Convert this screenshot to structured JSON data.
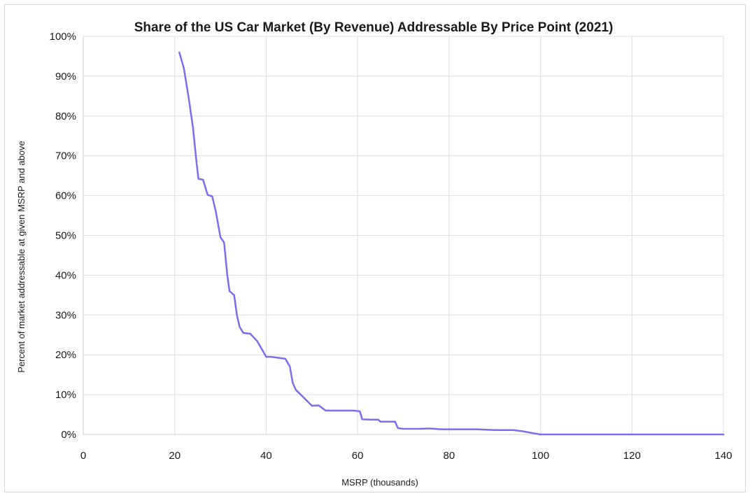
{
  "chart_data": {
    "type": "line",
    "title": "Share of the US Car Market (By Revenue) Addressable By Price Point (2021)",
    "xlabel": "MSRP (thousands)",
    "ylabel": "Percent of market addressable at given MSRP and above",
    "xlim": [
      0,
      140
    ],
    "ylim": [
      0,
      100
    ],
    "x_ticks": [
      0,
      20,
      40,
      60,
      80,
      100,
      120,
      140
    ],
    "y_ticks": [
      0,
      10,
      20,
      30,
      40,
      50,
      60,
      70,
      80,
      90,
      100
    ],
    "x_tick_labels": [
      "0",
      "20",
      "40",
      "60",
      "80",
      "100",
      "120",
      "140"
    ],
    "y_tick_labels": [
      "0%",
      "10%",
      "20%",
      "30%",
      "40%",
      "50%",
      "60%",
      "70%",
      "80%",
      "90%",
      "100%"
    ],
    "grid": true,
    "legend": "none",
    "series": [
      {
        "color": "#7b6cf0",
        "points": [
          [
            21,
            96
          ],
          [
            22,
            92
          ],
          [
            23,
            85
          ],
          [
            24,
            77
          ],
          [
            24.8,
            68
          ],
          [
            25.2,
            64.2
          ],
          [
            26.2,
            64
          ],
          [
            27.2,
            60.2
          ],
          [
            28.2,
            59.8
          ],
          [
            29,
            56
          ],
          [
            30,
            49.5
          ],
          [
            30.8,
            48.2
          ],
          [
            31.5,
            40
          ],
          [
            32,
            36
          ],
          [
            33,
            35
          ],
          [
            33.6,
            30
          ],
          [
            34.2,
            27
          ],
          [
            35,
            25.5
          ],
          [
            36.5,
            25.3
          ],
          [
            38,
            23.5
          ],
          [
            40,
            19.5
          ],
          [
            41,
            19.5
          ],
          [
            43,
            19.2
          ],
          [
            44.2,
            19
          ],
          [
            45.2,
            17
          ],
          [
            45.8,
            13
          ],
          [
            46.5,
            11.2
          ],
          [
            48,
            9.5
          ],
          [
            50,
            7.2
          ],
          [
            51.5,
            7.3
          ],
          [
            53,
            6
          ],
          [
            55,
            6
          ],
          [
            57,
            6
          ],
          [
            59,
            6
          ],
          [
            60.5,
            5.8
          ],
          [
            61,
            3.8
          ],
          [
            63,
            3.7
          ],
          [
            64.5,
            3.7
          ],
          [
            65,
            3.2
          ],
          [
            67,
            3.2
          ],
          [
            68.2,
            3.2
          ],
          [
            68.8,
            1.6
          ],
          [
            70,
            1.4
          ],
          [
            73,
            1.4
          ],
          [
            76,
            1.5
          ],
          [
            78,
            1.3
          ],
          [
            82,
            1.3
          ],
          [
            86,
            1.3
          ],
          [
            90,
            1.1
          ],
          [
            94,
            1.1
          ],
          [
            96,
            0.8
          ],
          [
            98.5,
            0.3
          ],
          [
            100,
            0
          ],
          [
            110,
            0
          ],
          [
            120,
            0
          ],
          [
            130,
            0
          ],
          [
            140,
            0
          ]
        ]
      }
    ]
  }
}
